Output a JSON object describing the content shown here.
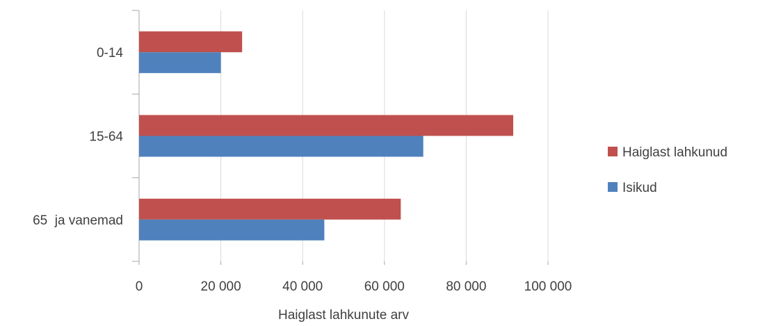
{
  "chart_data": {
    "type": "bar",
    "orientation": "horizontal",
    "categories": [
      "0-14",
      "15-64",
      "65  ja vanemad"
    ],
    "series": [
      {
        "name": "Haiglast lahkunud",
        "color": "#c0504d",
        "values": [
          25200,
          91500,
          64000
        ]
      },
      {
        "name": "Isikud",
        "color": "#4f81bd",
        "values": [
          20000,
          69500,
          45300
        ]
      }
    ],
    "xlabel": "Haiglast lahkunute arv",
    "ylabel": "",
    "xlim": [
      0,
      100000
    ],
    "x_ticks": [
      {
        "value": 0,
        "label": "0"
      },
      {
        "value": 20000,
        "label": "20 000"
      },
      {
        "value": 40000,
        "label": "40 000"
      },
      {
        "value": 60000,
        "label": "60 000"
      },
      {
        "value": 80000,
        "label": "80 000"
      },
      {
        "value": 100000,
        "label": "100 000"
      }
    ],
    "grid": true,
    "legend_position": "right",
    "legend": [
      "Haiglast lahkunud",
      "Isikud"
    ]
  }
}
